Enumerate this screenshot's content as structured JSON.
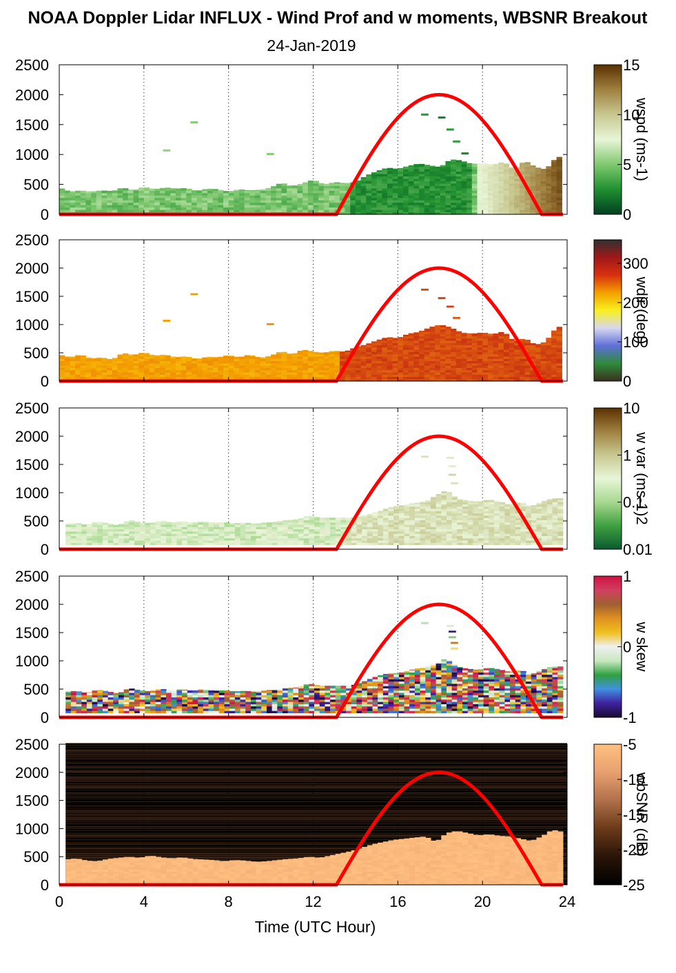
{
  "title": "NOAA Doppler Lidar INFLUX - Wind Prof and w moments, WBSNR Breakout",
  "subtitle": "24-Jan-2019",
  "chart_data": [
    {
      "type": "heatmap",
      "name": "wspd",
      "xlim": [
        0,
        24
      ],
      "ylim": [
        0,
        2500
      ],
      "xticks": [
        "0",
        "4",
        "8",
        "12",
        "16",
        "20",
        "24"
      ],
      "yticks": [
        "0",
        "500",
        "1000",
        "1500",
        "2000",
        "2500"
      ],
      "colorbar": {
        "label": "wspd (ms-1)",
        "range": [
          0,
          15
        ],
        "ticks": [
          "15",
          "10",
          "5",
          "0"
        ],
        "colors": [
          "#004020",
          "#209030",
          "#80c870",
          "#e8f5d8",
          "#c8c890",
          "#a08040",
          "#5a3000"
        ]
      },
      "profile_top": [
        [
          0.0,
          450
        ],
        [
          0.5,
          380
        ],
        [
          1.0,
          400
        ],
        [
          1.5,
          380
        ],
        [
          2.0,
          400
        ],
        [
          2.5,
          390
        ],
        [
          3.0,
          450
        ],
        [
          3.5,
          400
        ],
        [
          4.0,
          460
        ],
        [
          4.5,
          420
        ],
        [
          5.0,
          450
        ],
        [
          5.5,
          430
        ],
        [
          6.0,
          440
        ],
        [
          6.5,
          390
        ],
        [
          7.0,
          430
        ],
        [
          7.5,
          420
        ],
        [
          8.0,
          380
        ],
        [
          8.5,
          420
        ],
        [
          9.0,
          400
        ],
        [
          9.5,
          410
        ],
        [
          10.0,
          450
        ],
        [
          10.5,
          530
        ],
        [
          11.0,
          470
        ],
        [
          11.5,
          520
        ],
        [
          12.0,
          580
        ],
        [
          12.5,
          500
        ],
        [
          13.0,
          540
        ],
        [
          13.5,
          520
        ],
        [
          14.0,
          540
        ],
        [
          14.5,
          650
        ],
        [
          15.0,
          720
        ],
        [
          15.5,
          780
        ],
        [
          16.0,
          760
        ],
        [
          16.5,
          810
        ],
        [
          17.0,
          850
        ],
        [
          17.5,
          820
        ],
        [
          18.0,
          790
        ],
        [
          18.5,
          920
        ],
        [
          19.0,
          900
        ],
        [
          19.5,
          840
        ],
        [
          20.0,
          860
        ],
        [
          20.5,
          830
        ],
        [
          21.0,
          880
        ],
        [
          21.5,
          750
        ],
        [
          22.0,
          900
        ],
        [
          22.5,
          790
        ],
        [
          23.0,
          750
        ],
        [
          23.5,
          960
        ],
        [
          23.8,
          960
        ]
      ],
      "scatter_cells": [
        [
          6.2,
          1520
        ],
        [
          4.9,
          1050
        ],
        [
          9.8,
          990
        ],
        [
          17.1,
          1650
        ],
        [
          17.9,
          1600
        ],
        [
          18.3,
          1400
        ],
        [
          18.6,
          1200
        ],
        [
          19.0,
          1000
        ]
      ],
      "solar_curve": {
        "start_hour": 13.1,
        "peak_hour": 17.95,
        "end_hour": 22.8,
        "peak_value": 2000,
        "color": "#ff0000"
      }
    },
    {
      "type": "heatmap",
      "name": "wdir",
      "xlim": [
        0,
        24
      ],
      "ylim": [
        0,
        2500
      ],
      "xticks": [
        "0",
        "4",
        "8",
        "12",
        "16",
        "20",
        "24"
      ],
      "yticks": [
        "0",
        "500",
        "1000",
        "1500",
        "2000",
        "2500"
      ],
      "colorbar": {
        "label": "wdir (deg)",
        "range": [
          0,
          360
        ],
        "ticks": [
          "300",
          "200",
          "100",
          "0"
        ],
        "colors": [
          "#3a3020",
          "#2f8a3a",
          "#5f6fd8",
          "#d8d8f0",
          "#f8f020",
          "#f4a000",
          "#d83010",
          "#a01818",
          "#303030"
        ]
      },
      "profile_top": [
        [
          0.0,
          470
        ],
        [
          0.5,
          420
        ],
        [
          1.0,
          470
        ],
        [
          1.5,
          400
        ],
        [
          2.0,
          420
        ],
        [
          2.5,
          380
        ],
        [
          3.0,
          500
        ],
        [
          3.5,
          460
        ],
        [
          4.0,
          510
        ],
        [
          4.5,
          450
        ],
        [
          5.0,
          470
        ],
        [
          5.5,
          420
        ],
        [
          6.0,
          440
        ],
        [
          6.5,
          390
        ],
        [
          7.0,
          430
        ],
        [
          7.5,
          420
        ],
        [
          8.0,
          460
        ],
        [
          8.5,
          420
        ],
        [
          9.0,
          470
        ],
        [
          9.5,
          410
        ],
        [
          10.0,
          450
        ],
        [
          10.5,
          530
        ],
        [
          11.0,
          470
        ],
        [
          11.5,
          560
        ],
        [
          12.0,
          520
        ],
        [
          12.5,
          500
        ],
        [
          13.0,
          540
        ],
        [
          13.5,
          520
        ],
        [
          14.0,
          600
        ],
        [
          14.5,
          650
        ],
        [
          15.0,
          720
        ],
        [
          15.5,
          780
        ],
        [
          16.0,
          760
        ],
        [
          16.5,
          840
        ],
        [
          17.0,
          870
        ],
        [
          17.5,
          950
        ],
        [
          18.0,
          1000
        ],
        [
          18.5,
          950
        ],
        [
          19.0,
          860
        ],
        [
          19.5,
          840
        ],
        [
          20.0,
          860
        ],
        [
          20.5,
          830
        ],
        [
          21.0,
          880
        ],
        [
          21.5,
          700
        ],
        [
          22.0,
          760
        ],
        [
          22.5,
          640
        ],
        [
          23.0,
          700
        ],
        [
          23.5,
          960
        ],
        [
          23.8,
          960
        ]
      ],
      "scatter_cells": [
        [
          6.2,
          1520
        ],
        [
          4.9,
          1050
        ],
        [
          9.8,
          990
        ],
        [
          17.1,
          1600
        ],
        [
          17.9,
          1450
        ],
        [
          18.3,
          1300
        ],
        [
          18.6,
          1100
        ]
      ],
      "solar_curve": {
        "start_hour": 13.1,
        "peak_hour": 17.95,
        "end_hour": 22.8,
        "peak_value": 2000,
        "color": "#ff0000"
      }
    },
    {
      "type": "heatmap",
      "name": "w var",
      "xlim": [
        0,
        24
      ],
      "ylim": [
        0,
        2500
      ],
      "xticks": [
        "0",
        "4",
        "8",
        "12",
        "16",
        "20",
        "24"
      ],
      "yticks": [
        "0",
        "500",
        "1000",
        "1500",
        "2000",
        "2500"
      ],
      "colorbar": {
        "label": "w var (ms-1)2",
        "range": [
          0.01,
          10
        ],
        "ticks": [
          "10",
          "1",
          "0.1",
          "0.01"
        ],
        "colors": [
          "#0a5a30",
          "#40a040",
          "#a8d890",
          "#e8f5d8",
          "#c8c890",
          "#a08040",
          "#5a3000"
        ]
      },
      "profile_top": [
        [
          0.3,
          450
        ],
        [
          0.8,
          470
        ],
        [
          1.3,
          430
        ],
        [
          1.8,
          490
        ],
        [
          2.3,
          460
        ],
        [
          2.8,
          420
        ],
        [
          3.3,
          520
        ],
        [
          3.8,
          480
        ],
        [
          4.3,
          460
        ],
        [
          4.8,
          510
        ],
        [
          5.3,
          470
        ],
        [
          5.8,
          500
        ],
        [
          6.3,
          470
        ],
        [
          6.8,
          500
        ],
        [
          7.3,
          470
        ],
        [
          7.8,
          480
        ],
        [
          8.3,
          460
        ],
        [
          8.8,
          470
        ],
        [
          9.3,
          450
        ],
        [
          9.8,
          480
        ],
        [
          10.3,
          490
        ],
        [
          10.8,
          520
        ],
        [
          11.3,
          530
        ],
        [
          11.8,
          600
        ],
        [
          12.3,
          560
        ],
        [
          12.8,
          560
        ],
        [
          13.3,
          560
        ],
        [
          13.8,
          560
        ],
        [
          14.3,
          580
        ],
        [
          14.8,
          640
        ],
        [
          15.3,
          700
        ],
        [
          15.8,
          760
        ],
        [
          16.3,
          780
        ],
        [
          16.8,
          820
        ],
        [
          17.3,
          840
        ],
        [
          17.8,
          950
        ],
        [
          18.3,
          1050
        ],
        [
          18.8,
          900
        ],
        [
          19.3,
          860
        ],
        [
          19.8,
          840
        ],
        [
          20.3,
          880
        ],
        [
          20.8,
          850
        ],
        [
          21.3,
          780
        ],
        [
          21.8,
          840
        ],
        [
          22.3,
          760
        ],
        [
          22.8,
          840
        ],
        [
          23.3,
          900
        ],
        [
          23.8,
          900
        ]
      ],
      "scatter_cells": [
        [
          17.1,
          1620
        ],
        [
          18.3,
          1600
        ],
        [
          18.4,
          1450
        ],
        [
          18.4,
          1300
        ],
        [
          18.5,
          1150
        ]
      ],
      "solar_curve": {
        "start_hour": 13.1,
        "peak_hour": 17.95,
        "end_hour": 22.8,
        "peak_value": 2000,
        "color": "#ff0000"
      }
    },
    {
      "type": "heatmap",
      "name": "w skew",
      "xlim": [
        0,
        24
      ],
      "ylim": [
        0,
        2500
      ],
      "xticks": [
        "0",
        "4",
        "8",
        "12",
        "16",
        "20",
        "24"
      ],
      "yticks": [
        "0",
        "500",
        "1000",
        "1500",
        "2000",
        "2500"
      ],
      "colorbar": {
        "label": "w skew",
        "range": [
          -1,
          1
        ],
        "ticks": [
          "1",
          "0",
          "-1"
        ],
        "colors": [
          "#1a0a30",
          "#4020a0",
          "#4090e0",
          "#30a040",
          "#c8e8c0",
          "#f0f0f0",
          "#f0c020",
          "#e09020",
          "#a06030",
          "#d04060",
          "#d01040"
        ]
      },
      "profile_top": [
        [
          0.3,
          450
        ],
        [
          0.8,
          470
        ],
        [
          1.3,
          430
        ],
        [
          1.8,
          490
        ],
        [
          2.3,
          460
        ],
        [
          2.8,
          420
        ],
        [
          3.3,
          520
        ],
        [
          3.8,
          480
        ],
        [
          4.3,
          460
        ],
        [
          4.8,
          510
        ],
        [
          5.3,
          470
        ],
        [
          5.8,
          500
        ],
        [
          6.3,
          470
        ],
        [
          6.8,
          500
        ],
        [
          7.3,
          470
        ],
        [
          7.8,
          480
        ],
        [
          8.3,
          460
        ],
        [
          8.8,
          470
        ],
        [
          9.3,
          450
        ],
        [
          9.8,
          480
        ],
        [
          10.3,
          490
        ],
        [
          10.8,
          520
        ],
        [
          11.3,
          530
        ],
        [
          11.8,
          600
        ],
        [
          12.3,
          560
        ],
        [
          12.8,
          560
        ],
        [
          13.3,
          560
        ],
        [
          13.8,
          560
        ],
        [
          14.3,
          620
        ],
        [
          14.8,
          700
        ],
        [
          15.3,
          760
        ],
        [
          15.8,
          780
        ],
        [
          16.3,
          800
        ],
        [
          16.8,
          860
        ],
        [
          17.3,
          880
        ],
        [
          17.8,
          960
        ],
        [
          18.3,
          1050
        ],
        [
          18.8,
          900
        ],
        [
          19.3,
          860
        ],
        [
          19.8,
          840
        ],
        [
          20.3,
          880
        ],
        [
          20.8,
          850
        ],
        [
          21.3,
          800
        ],
        [
          21.8,
          840
        ],
        [
          22.3,
          760
        ],
        [
          22.8,
          840
        ],
        [
          23.3,
          900
        ],
        [
          23.8,
          900
        ]
      ],
      "scatter_cells": [
        [
          17.1,
          1650
        ],
        [
          18.3,
          1600
        ],
        [
          18.4,
          1500
        ],
        [
          18.4,
          1400
        ],
        [
          18.5,
          1300
        ],
        [
          18.5,
          1200
        ]
      ],
      "solar_curve": {
        "start_hour": 13.1,
        "peak_hour": 17.95,
        "end_hour": 22.8,
        "peak_value": 2000,
        "color": "#ff0000"
      }
    },
    {
      "type": "heatmap",
      "name": "wbSNR",
      "xlim": [
        0,
        24
      ],
      "ylim": [
        0,
        2500
      ],
      "xticks": [
        "0",
        "4",
        "8",
        "12",
        "16",
        "20",
        "24"
      ],
      "yticks": [
        "0",
        "500",
        "1000",
        "1500",
        "2000",
        "2500"
      ],
      "xlabel": "Time (UTC Hour)",
      "colorbar": {
        "label": "wbSNR (dB)",
        "range": [
          -25,
          -5
        ],
        "ticks": [
          "-5",
          "-10",
          "-15",
          "-20",
          "-25"
        ],
        "colors": [
          "#000000",
          "#2a1408",
          "#6a3a18",
          "#b0704a",
          "#e8a070",
          "#ffc080"
        ]
      },
      "profile_top": [
        [
          0.3,
          450
        ],
        [
          0.8,
          470
        ],
        [
          1.3,
          430
        ],
        [
          1.8,
          420
        ],
        [
          2.3,
          460
        ],
        [
          2.8,
          480
        ],
        [
          3.3,
          500
        ],
        [
          3.8,
          480
        ],
        [
          4.3,
          520
        ],
        [
          4.8,
          490
        ],
        [
          5.3,
          470
        ],
        [
          5.8,
          490
        ],
        [
          6.3,
          460
        ],
        [
          6.8,
          450
        ],
        [
          7.3,
          440
        ],
        [
          7.8,
          420
        ],
        [
          8.3,
          440
        ],
        [
          8.8,
          430
        ],
        [
          9.3,
          410
        ],
        [
          9.8,
          420
        ],
        [
          10.3,
          440
        ],
        [
          10.8,
          460
        ],
        [
          11.3,
          470
        ],
        [
          11.8,
          500
        ],
        [
          12.3,
          480
        ],
        [
          12.8,
          520
        ],
        [
          13.3,
          560
        ],
        [
          13.8,
          600
        ],
        [
          14.3,
          660
        ],
        [
          14.8,
          720
        ],
        [
          15.3,
          760
        ],
        [
          15.8,
          800
        ],
        [
          16.3,
          820
        ],
        [
          16.8,
          840
        ],
        [
          17.3,
          860
        ],
        [
          17.8,
          760
        ],
        [
          18.3,
          920
        ],
        [
          18.8,
          960
        ],
        [
          19.3,
          920
        ],
        [
          19.8,
          880
        ],
        [
          20.3,
          900
        ],
        [
          20.8,
          870
        ],
        [
          21.3,
          860
        ],
        [
          21.8,
          820
        ],
        [
          22.3,
          780
        ],
        [
          22.8,
          860
        ],
        [
          23.3,
          980
        ],
        [
          23.8,
          940
        ]
      ],
      "solar_curve": {
        "start_hour": 13.1,
        "peak_hour": 17.95,
        "end_hour": 22.8,
        "peak_value": 2000,
        "color": "#ff0000"
      }
    }
  ]
}
